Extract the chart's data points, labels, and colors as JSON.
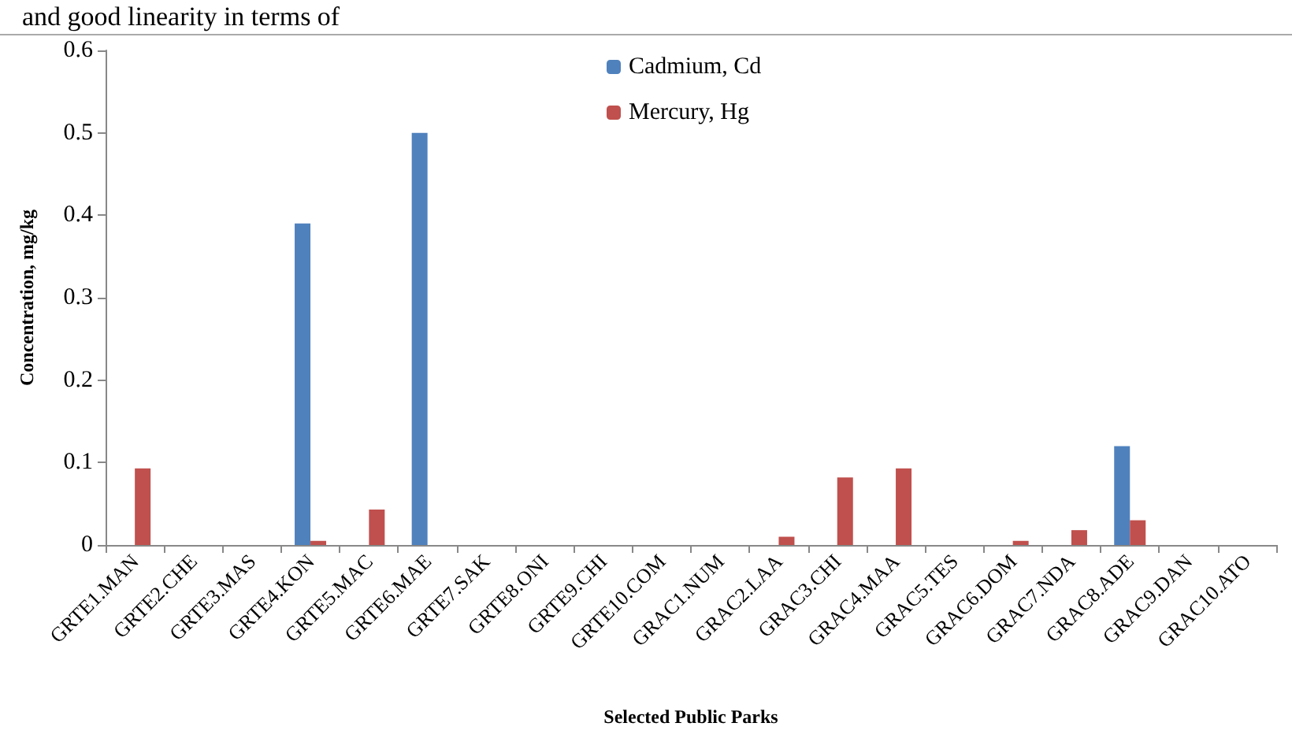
{
  "chart_data": {
    "type": "bar",
    "annotations": [
      "and good linearity in terms of"
    ],
    "xlabel": "Selected Public Parks",
    "ylabel": "Concentration, mg/kg",
    "categories": [
      "GRTE1.MAN",
      "GRTE2.CHE",
      "GRTE3.MAS",
      "GRTE4.KON",
      "GRTE5.MAC",
      "GRTE6.MAE",
      "GRTE7.SAK",
      "GRTE8.ONI",
      "GRTE9.CHI",
      "GRTE10.COM",
      "GRAC1.NUM",
      "GRAC2.LAA",
      "GRAC3.CHI",
      "GRAC4.MAA",
      "GRAC5.TES",
      "GRAC6.DOM",
      "GRAC7.NDA",
      "GRAC8.ADE",
      "GRAC9.DAN",
      "GRAC10.ATO"
    ],
    "series": [
      {
        "name": "Cadmium, Cd",
        "color": "#4f81bd",
        "values": [
          0,
          0,
          0,
          0.39,
          0,
          0.5,
          0,
          0,
          0,
          0,
          0,
          0,
          0,
          0,
          0,
          0,
          0,
          0.12,
          0,
          0
        ]
      },
      {
        "name": "Mercury, Hg",
        "color": "#c0504d",
        "values": [
          0.093,
          0,
          0,
          0.005,
          0.043,
          0,
          0,
          0,
          0,
          0,
          0,
          0.01,
          0.082,
          0.093,
          0,
          0.005,
          0.018,
          0.03,
          0,
          0
        ]
      }
    ],
    "ylim": [
      0,
      0.6
    ],
    "yticks": [
      0,
      0.1,
      0.2,
      0.3,
      0.4,
      0.5,
      0.6
    ],
    "grid": false,
    "legend": "top"
  }
}
